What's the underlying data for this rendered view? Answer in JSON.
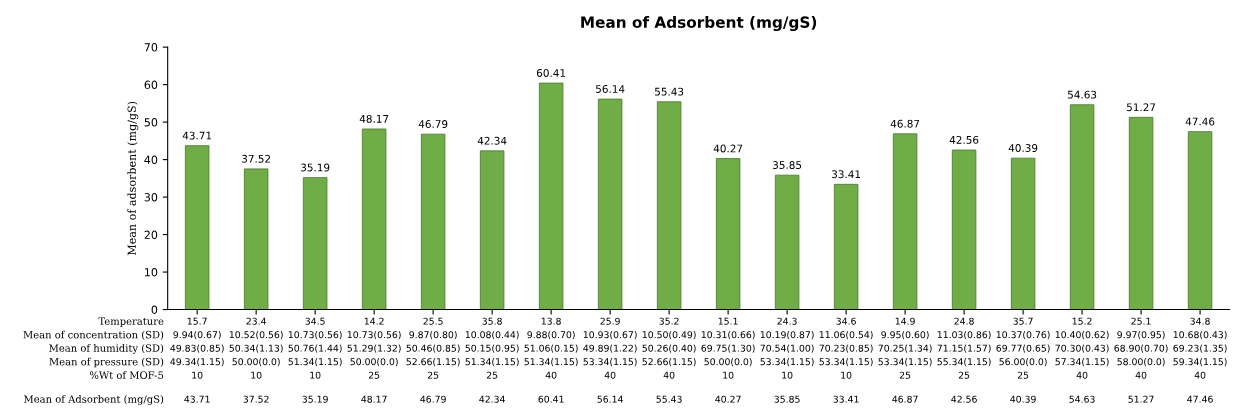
{
  "chart_data": {
    "type": "bar",
    "title": "Mean of Adsorbent (mg/gS)",
    "ylabel": "Mean of adsorbent (mg/gS)",
    "categories": [
      "15.7\n9.94(0.67)\n49.83(0.85)\n49.34(1.15)\n10\n43.71",
      "23.4\n10.52(0.56)\n50.34(1.13)\n50.00(0.0)\n10\n37.52",
      "34.5\n10.73(0.56)\n50.76(1.44)\n51.34(1.15)\n10\n35.19",
      "14.2\n10.73(0.56)\n51.29(1.32)\n50.00(0.0)\n25\n48.17",
      "25.5\n9.87(0.80)\n50.46(0.85)\n52.66(1.15)\n25\n46.79",
      "35.8\n10.08(0.44)\n50.15(0.95)\n51.34(1.15)\n25\n42.34",
      "13.8\n9.88(0.70)\n51.06(0.15)\n51.34(1.15)\n40\n60.41",
      "25.9\n10.93(0.67)\n49.89(1.22)\n53.34(1.15)\n40\n56.14",
      "35.2\n10.50(0.49)\n50.26(0.40)\n52.66(1.15)\n40\n55.43",
      "15.1\n10.31(0.66)\n69.75(1.30)\n50.00(0.0)\n10\n40.27",
      "24.3\n10.19(0.87)\n70.54(1.00)\n53.34(1.15)\n10\n35.85",
      "34.6\n11.06(0.54)\n70.23(0.85)\n53.34(1.15)\n10\n33.41",
      "14.9\n9.95(0.60)\n70.25(1.34)\n53.34(1.15)\n25\n46.87",
      "24.8\n11.03(0.86)\n71.15(1.57)\n55.34(1.15)\n25\n42.56",
      "35.7\n10.37(0.76)\n69.77(0.65)\n56.00(0.0)\n25\n40.39",
      "15.2\n10.40(0.62)\n70.30(0.43)\n57.34(1.15)\n40\n54.63",
      "25.1\n9.97(0.95)\n68.90(0.70)\n58.00(0.0)\n40\n51.27",
      "34.8\n10.68(0.43)\n69.23(1.35)\n59.34(1.15)\n40\n47.46"
    ],
    "values": [
      43.71,
      37.52,
      35.19,
      48.17,
      46.79,
      42.34,
      60.41,
      56.14,
      55.43,
      40.27,
      35.85,
      33.41,
      46.87,
      42.56,
      40.39,
      54.63,
      51.27,
      47.46
    ],
    "value_labels": [
      "43.71",
      "37.52",
      "35.19",
      "48.17",
      "46.79",
      "42.34",
      "60.41",
      "56.14",
      "55.43",
      "40.27",
      "35.85",
      "33.41",
      "46.87",
      "42.56",
      "40.39",
      "54.63",
      "51.27",
      "47.46"
    ],
    "color": "#70ad47",
    "ylim": [
      0,
      70
    ],
    "yticks": [
      0,
      10,
      20,
      30,
      40,
      50,
      60,
      70
    ],
    "annotations": [
      "Temperature",
      "Mean of concentration (SD)",
      "Mean of humidity (SD)",
      "Mean of pressure (SD)",
      "%Wt of MOF-5",
      "Mean of Adsorbent (mg/gS)"
    ]
  }
}
